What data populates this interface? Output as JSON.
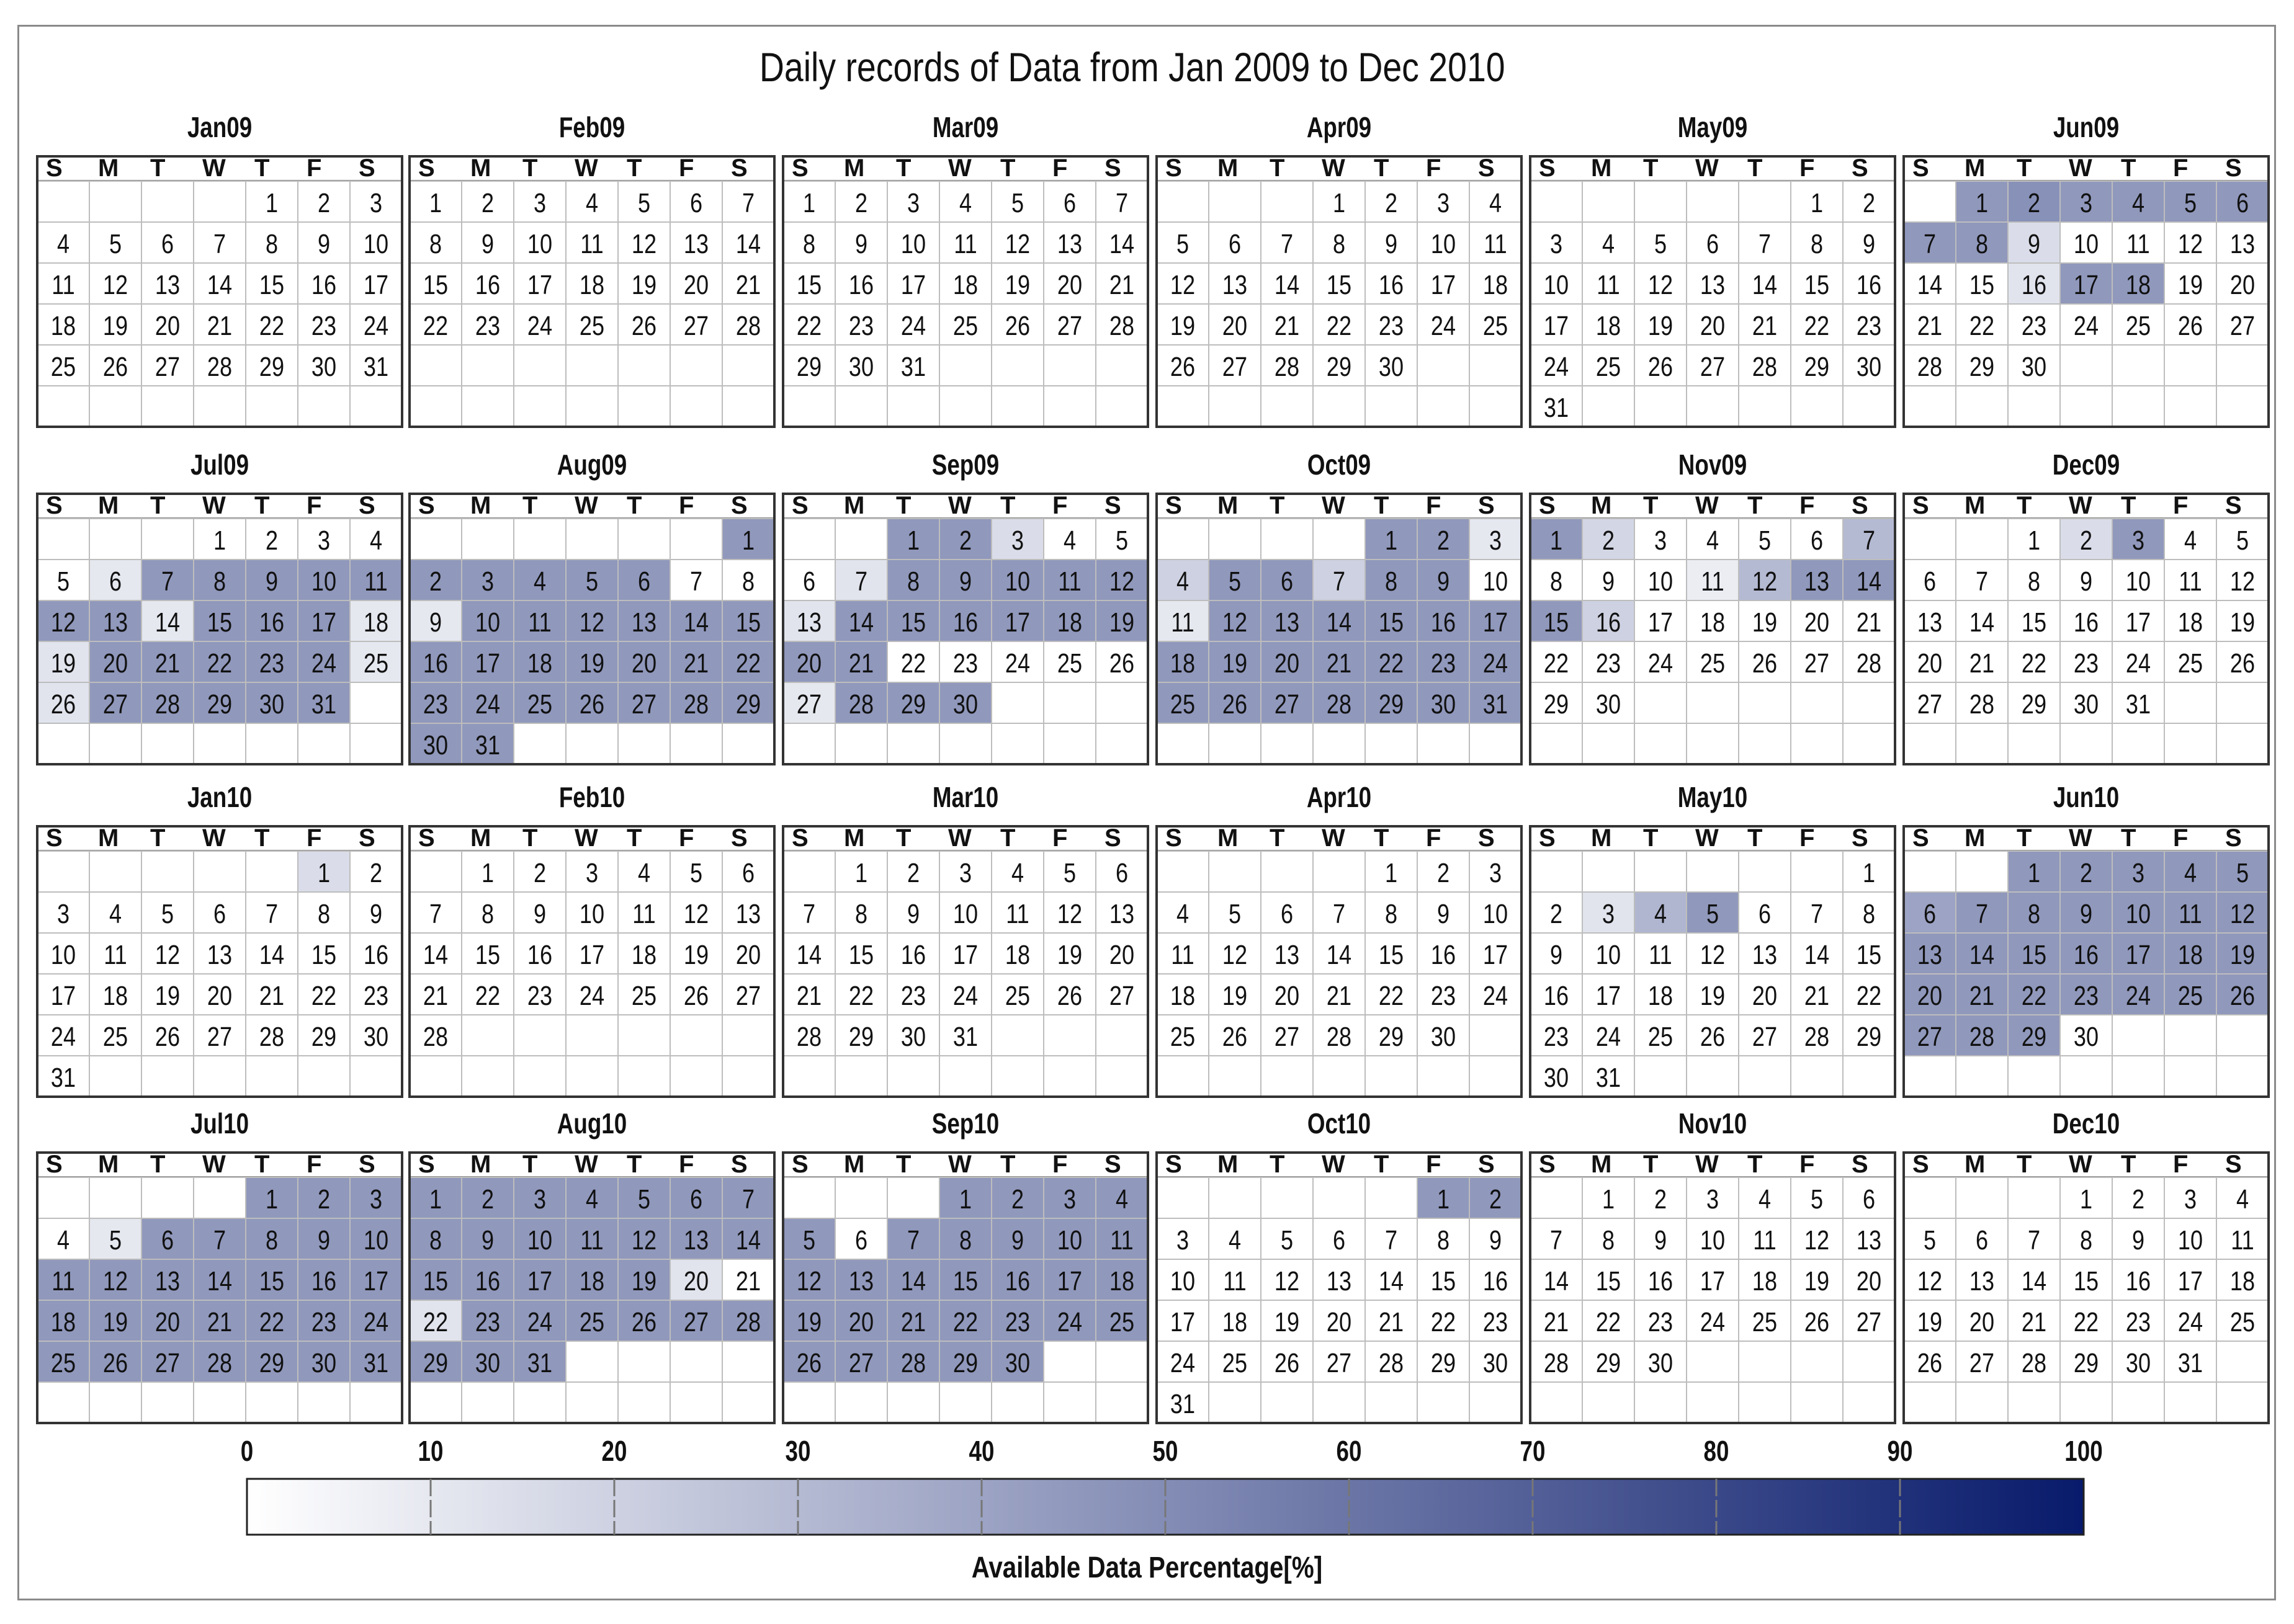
{
  "chart_data": {
    "type": "heatmap",
    "title": "Daily records of Data from Jan 2009 to Dec 2010",
    "weekday_header": [
      "S",
      "M",
      "T",
      "W",
      "T",
      "F",
      "S"
    ],
    "colorbar": {
      "label": "Available Data Percentage[%]",
      "min": 0,
      "max": 100,
      "ticks": [
        0,
        10,
        20,
        30,
        40,
        50,
        60,
        70,
        80,
        90,
        100
      ],
      "color_low": "#ffffff",
      "color_high": "#081a6b"
    },
    "months": [
      {
        "label": "Jan09",
        "year": 2009,
        "month": 1,
        "values": {}
      },
      {
        "label": "Feb09",
        "year": 2009,
        "month": 2,
        "values": {}
      },
      {
        "label": "Mar09",
        "year": 2009,
        "month": 3,
        "values": {}
      },
      {
        "label": "Apr09",
        "year": 2009,
        "month": 4,
        "values": {}
      },
      {
        "label": "May09",
        "year": 2009,
        "month": 5,
        "values": {}
      },
      {
        "label": "Jun09",
        "year": 2009,
        "month": 6,
        "values": {
          "1": 45,
          "2": 48,
          "3": 45,
          "4": 45,
          "5": 45,
          "6": 45,
          "7": 45,
          "8": 45,
          "9": 15,
          "16": 12,
          "17": 45,
          "18": 45
        }
      },
      {
        "label": "Jul09",
        "year": 2009,
        "month": 7,
        "values": {
          "6": 10,
          "7": 45,
          "8": 45,
          "9": 45,
          "10": 45,
          "11": 45,
          "12": 45,
          "13": 45,
          "14": 10,
          "15": 45,
          "16": 45,
          "17": 45,
          "18": 10,
          "19": 12,
          "20": 45,
          "21": 45,
          "22": 45,
          "23": 45,
          "24": 45,
          "25": 10,
          "26": 12,
          "27": 45,
          "28": 45,
          "29": 45,
          "30": 45,
          "31": 45
        }
      },
      {
        "label": "Aug09",
        "year": 2009,
        "month": 8,
        "values": {
          "1": 45,
          "2": 45,
          "3": 45,
          "4": 45,
          "5": 45,
          "6": 45,
          "9": 10,
          "10": 45,
          "11": 45,
          "12": 45,
          "13": 45,
          "14": 45,
          "15": 45,
          "16": 45,
          "17": 45,
          "18": 45,
          "19": 45,
          "20": 45,
          "21": 45,
          "22": 45,
          "23": 45,
          "24": 45,
          "25": 45,
          "26": 45,
          "27": 45,
          "28": 45,
          "29": 45,
          "30": 45,
          "31": 45
        }
      },
      {
        "label": "Sep09",
        "year": 2009,
        "month": 9,
        "values": {
          "1": 45,
          "2": 45,
          "3": 15,
          "7": 12,
          "8": 45,
          "9": 45,
          "10": 45,
          "11": 45,
          "12": 45,
          "13": 12,
          "14": 45,
          "15": 45,
          "16": 45,
          "17": 45,
          "18": 45,
          "19": 45,
          "20": 45,
          "21": 45,
          "27": 10,
          "28": 45,
          "29": 45,
          "30": 45
        }
      },
      {
        "label": "Oct09",
        "year": 2009,
        "month": 10,
        "values": {
          "1": 45,
          "2": 45,
          "3": 10,
          "4": 20,
          "5": 45,
          "6": 45,
          "7": 20,
          "8": 45,
          "9": 45,
          "11": 10,
          "12": 45,
          "13": 45,
          "14": 45,
          "15": 45,
          "16": 45,
          "17": 45,
          "18": 45,
          "19": 45,
          "20": 45,
          "21": 45,
          "22": 45,
          "23": 45,
          "24": 45,
          "25": 45,
          "26": 45,
          "27": 45,
          "28": 45,
          "29": 45,
          "30": 45,
          "31": 45
        }
      },
      {
        "label": "Nov09",
        "year": 2009,
        "month": 11,
        "values": {
          "1": 45,
          "2": 18,
          "7": 30,
          "11": 8,
          "12": 30,
          "13": 45,
          "14": 45,
          "15": 45,
          "16": 20
        }
      },
      {
        "label": "Dec09",
        "year": 2009,
        "month": 12,
        "values": {
          "2": 15,
          "3": 45
        }
      },
      {
        "label": "Jan10",
        "year": 2010,
        "month": 1,
        "values": {
          "1": 15
        }
      },
      {
        "label": "Feb10",
        "year": 2010,
        "month": 2,
        "values": {}
      },
      {
        "label": "Mar10",
        "year": 2010,
        "month": 3,
        "values": {}
      },
      {
        "label": "Apr10",
        "year": 2010,
        "month": 4,
        "values": {}
      },
      {
        "label": "May10",
        "year": 2010,
        "month": 5,
        "values": {
          "3": 12,
          "4": 32,
          "5": 45
        }
      },
      {
        "label": "Jun10",
        "year": 2010,
        "month": 6,
        "values": {
          "1": 45,
          "2": 45,
          "3": 45,
          "4": 45,
          "5": 45,
          "6": 40,
          "7": 45,
          "8": 45,
          "9": 45,
          "10": 45,
          "11": 45,
          "12": 45,
          "13": 45,
          "14": 45,
          "15": 45,
          "16": 45,
          "17": 45,
          "18": 45,
          "19": 45,
          "20": 45,
          "21": 45,
          "22": 45,
          "23": 45,
          "24": 45,
          "25": 45,
          "26": 45,
          "27": 45,
          "28": 45,
          "29": 45
        }
      },
      {
        "label": "Jul10",
        "year": 2010,
        "month": 7,
        "values": {
          "1": 45,
          "2": 45,
          "3": 45,
          "5": 10,
          "6": 45,
          "7": 45,
          "8": 45,
          "9": 45,
          "10": 45,
          "11": 45,
          "12": 45,
          "13": 45,
          "14": 45,
          "15": 45,
          "16": 45,
          "17": 45,
          "18": 45,
          "19": 45,
          "20": 45,
          "21": 45,
          "22": 45,
          "23": 45,
          "24": 45,
          "25": 45,
          "26": 45,
          "27": 45,
          "28": 45,
          "29": 45,
          "30": 45,
          "31": 45
        }
      },
      {
        "label": "Aug10",
        "year": 2010,
        "month": 8,
        "values": {
          "1": 45,
          "2": 45,
          "3": 45,
          "4": 45,
          "5": 45,
          "6": 45,
          "7": 45,
          "8": 45,
          "9": 45,
          "10": 45,
          "11": 45,
          "12": 45,
          "13": 45,
          "14": 45,
          "15": 45,
          "16": 45,
          "17": 45,
          "18": 45,
          "19": 45,
          "20": 12,
          "22": 12,
          "23": 45,
          "24": 45,
          "25": 45,
          "26": 45,
          "27": 45,
          "28": 45,
          "29": 45,
          "30": 45,
          "31": 45
        }
      },
      {
        "label": "Sep10",
        "year": 2010,
        "month": 9,
        "values": {
          "1": 45,
          "2": 45,
          "3": 45,
          "4": 45,
          "5": 45,
          "7": 45,
          "8": 45,
          "9": 45,
          "10": 45,
          "11": 45,
          "12": 45,
          "13": 45,
          "14": 45,
          "15": 45,
          "16": 45,
          "17": 45,
          "18": 45,
          "19": 45,
          "20": 45,
          "21": 45,
          "22": 45,
          "23": 45,
          "24": 45,
          "25": 45,
          "26": 45,
          "27": 45,
          "28": 45,
          "29": 45,
          "30": 45
        }
      },
      {
        "label": "Oct10",
        "year": 2010,
        "month": 10,
        "values": {
          "1": 45,
          "2": 45
        }
      },
      {
        "label": "Nov10",
        "year": 2010,
        "month": 11,
        "values": {}
      },
      {
        "label": "Dec10",
        "year": 2010,
        "month": 12,
        "values": {}
      }
    ]
  }
}
